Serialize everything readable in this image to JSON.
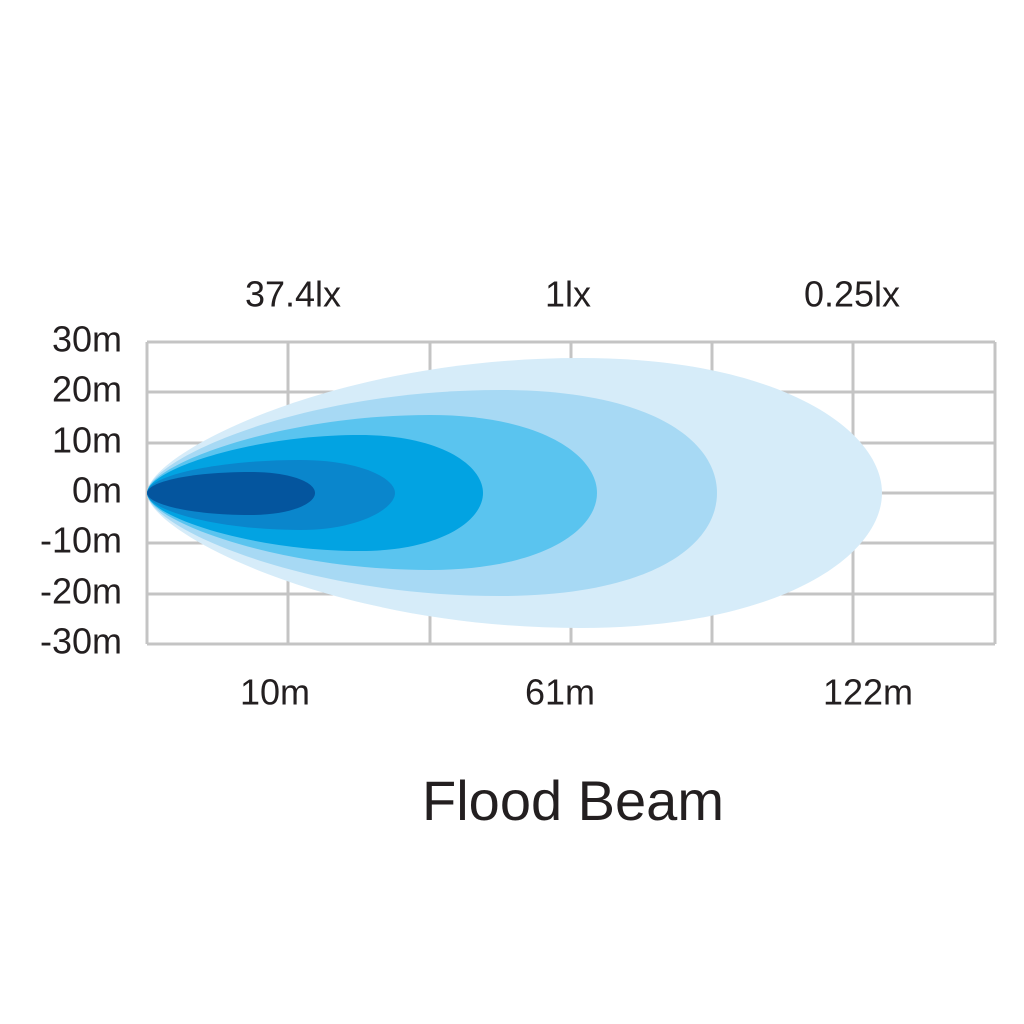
{
  "lux_labels": [
    "37.4lx",
    "1lx",
    "0.25lx"
  ],
  "y_axis_labels": [
    "30m",
    "20m",
    "10m",
    "0m",
    "-10m",
    "-20m",
    "-30m"
  ],
  "x_axis_labels": [
    "10m",
    "61m",
    "122m"
  ],
  "title": "Flood Beam"
}
